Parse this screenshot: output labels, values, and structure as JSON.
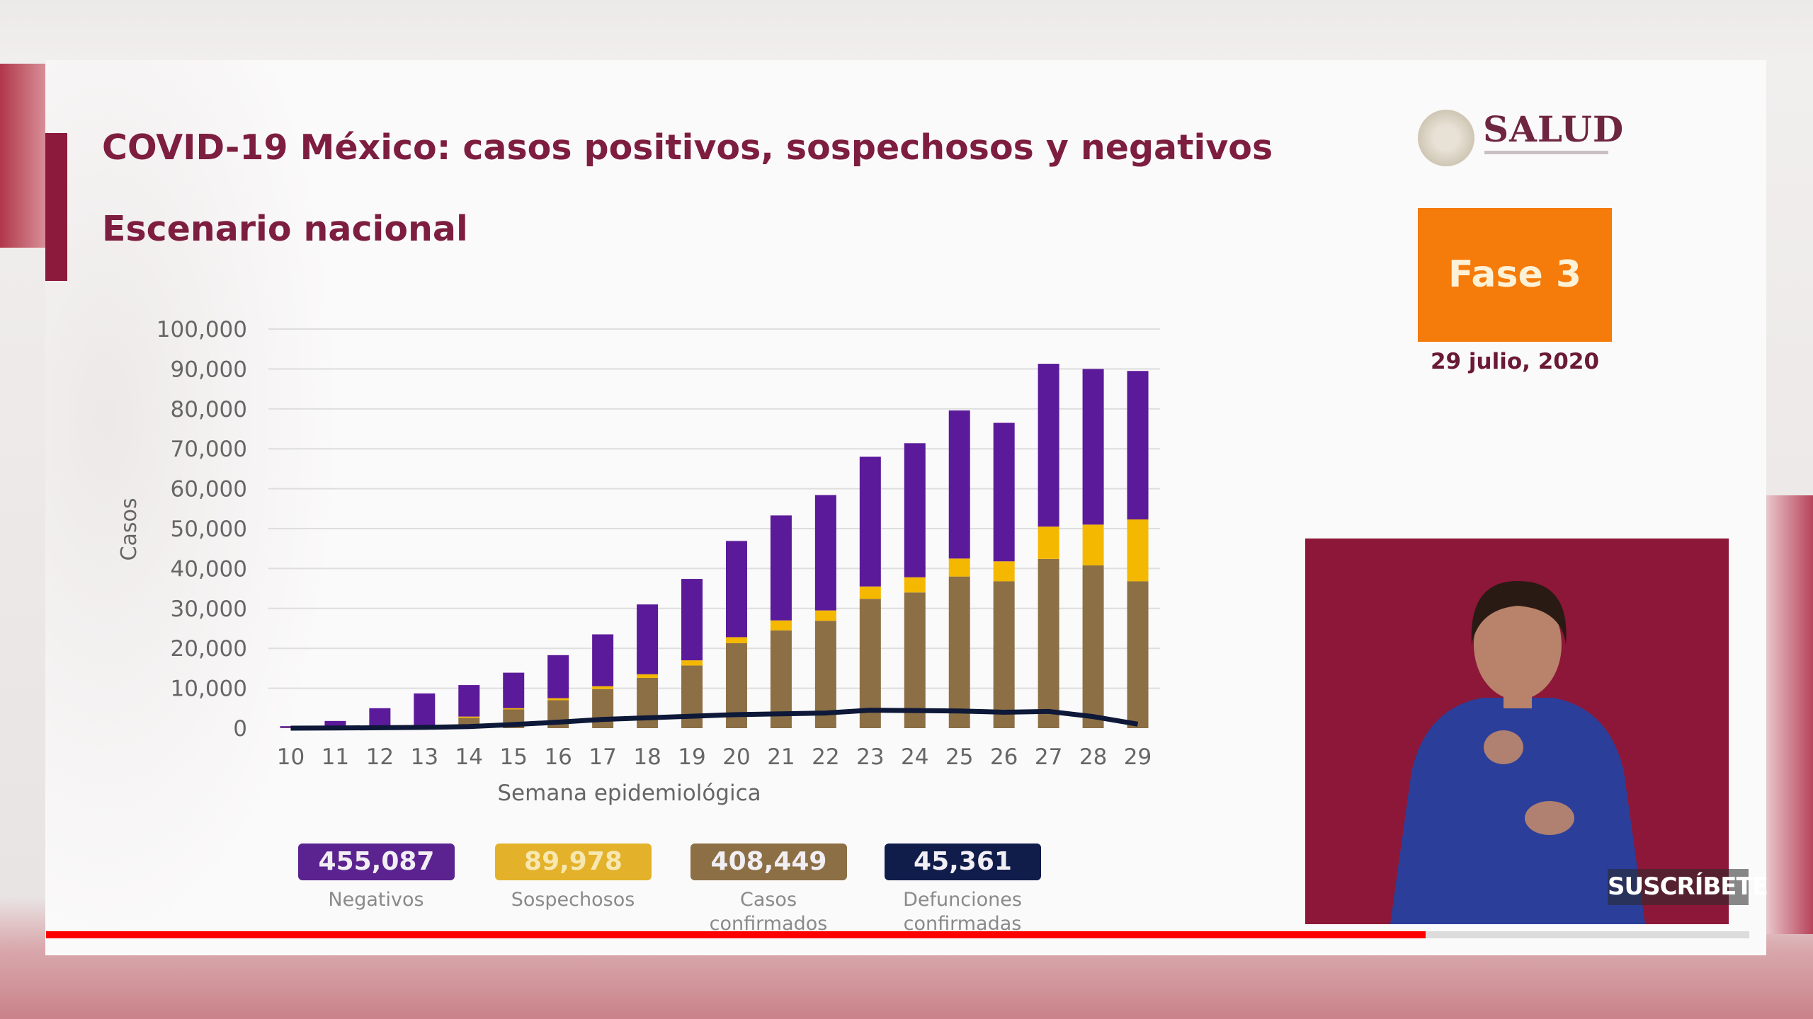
{
  "slide": {
    "title": "COVID-19 México: casos positivos, sospechosos y negativos",
    "subtitle": "Escenario nacional",
    "logo_text": "SALUD",
    "phase_label": "Fase 3",
    "date": "29 julio, 2020"
  },
  "summary": [
    {
      "value": "455,087",
      "label": "Negativos",
      "color": "#5b2390"
    },
    {
      "value": "89,978",
      "label": "Sospechosos",
      "color": "#e3b22a"
    },
    {
      "value": "408,449",
      "label": "Casos confirmados",
      "color": "#8c6f45"
    },
    {
      "value": "45,361",
      "label": "Defunciones confirmadas",
      "color": "#101c4a"
    }
  ],
  "video_overlay": {
    "subscribe_label": "SUSCRÍBETE",
    "progress_percent": 81
  },
  "colors": {
    "accent": "#8c1a3c",
    "phase": "#f57b0a",
    "progress": "#ff0000"
  },
  "chart_data": {
    "type": "bar",
    "stacked": true,
    "xlabel": "Semana epidemiológica",
    "ylabel": "Casos",
    "ylim": [
      0,
      100000
    ],
    "yticks": [
      "0",
      "10,000",
      "20,000",
      "30,000",
      "40,000",
      "50,000",
      "60,000",
      "70,000",
      "80,000",
      "90,000",
      "100,000"
    ],
    "grid": true,
    "categories": [
      "10",
      "11",
      "12",
      "13",
      "14",
      "15",
      "16",
      "17",
      "18",
      "19",
      "20",
      "21",
      "22",
      "23",
      "24",
      "25",
      "26",
      "27",
      "28",
      "29"
    ],
    "series": [
      {
        "key": "confirmados",
        "color": "#8c6f45",
        "values": [
          100,
          300,
          500,
          800,
          2600,
          4700,
          7000,
          9800,
          12600,
          15700,
          21300,
          24500,
          26900,
          32400,
          34000,
          38000,
          36800,
          42400,
          40800,
          36800
        ]
      },
      {
        "key": "sospechosos",
        "color": "#f5b800",
        "values": [
          0,
          0,
          0,
          0,
          300,
          300,
          500,
          700,
          900,
          1300,
          1500,
          2500,
          2600,
          3100,
          3800,
          4500,
          5000,
          8100,
          10200,
          15500
        ]
      },
      {
        "key": "negativos",
        "color": "#5b1a9a",
        "values": [
          400,
          1500,
          4500,
          7900,
          7900,
          8900,
          10800,
          13000,
          17500,
          20400,
          24100,
          26300,
          28900,
          32500,
          33600,
          37100,
          34700,
          40800,
          39000,
          37200
        ]
      },
      {
        "key": "defunciones",
        "type": "line",
        "color": "#0e1838",
        "values": [
          0,
          50,
          100,
          200,
          400,
          900,
          1500,
          2200,
          2600,
          3000,
          3400,
          3600,
          3800,
          4500,
          4400,
          4300,
          4000,
          4200,
          2900,
          1000
        ]
      }
    ]
  }
}
